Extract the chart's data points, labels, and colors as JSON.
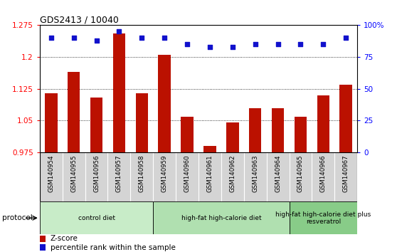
{
  "title": "GDS2413 / 10040",
  "samples": [
    "GSM140954",
    "GSM140955",
    "GSM140956",
    "GSM140957",
    "GSM140958",
    "GSM140959",
    "GSM140960",
    "GSM140961",
    "GSM140962",
    "GSM140963",
    "GSM140964",
    "GSM140965",
    "GSM140966",
    "GSM140967"
  ],
  "zscore": [
    1.115,
    1.165,
    1.105,
    1.255,
    1.115,
    1.205,
    1.06,
    0.99,
    1.045,
    1.08,
    1.08,
    1.06,
    1.11,
    1.135
  ],
  "percentile": [
    90,
    90,
    88,
    95,
    90,
    90,
    85,
    83,
    83,
    85,
    85,
    85,
    85,
    90
  ],
  "bar_color": "#bb1100",
  "dot_color": "#1111cc",
  "ylim_left": [
    0.975,
    1.275
  ],
  "ylim_right": [
    0,
    100
  ],
  "yticks_left": [
    0.975,
    1.05,
    1.125,
    1.2,
    1.275
  ],
  "yticks_left_labels": [
    "0.975",
    "1.05",
    "1.125",
    "1.2",
    "1.275"
  ],
  "yticks_right": [
    0,
    25,
    50,
    75,
    100
  ],
  "yticks_right_labels": [
    "0",
    "25",
    "50",
    "75",
    "100%"
  ],
  "groups": [
    {
      "label": "control diet",
      "start": 0,
      "end": 5,
      "color": "#c8ecc8"
    },
    {
      "label": "high-fat high-calorie diet",
      "start": 5,
      "end": 11,
      "color": "#b0e0b0"
    },
    {
      "label": "high-fat high-calorie diet plus\nresveratrol",
      "start": 11,
      "end": 14,
      "color": "#88cc88"
    }
  ],
  "protocol_label": "protocol",
  "legend_zscore": "Z-score",
  "legend_percentile": "percentile rank within the sample",
  "sample_bg_color": "#d4d4d4",
  "grid_line_color": "#333333",
  "grid_dots": [
    1.05,
    1.125,
    1.2
  ]
}
